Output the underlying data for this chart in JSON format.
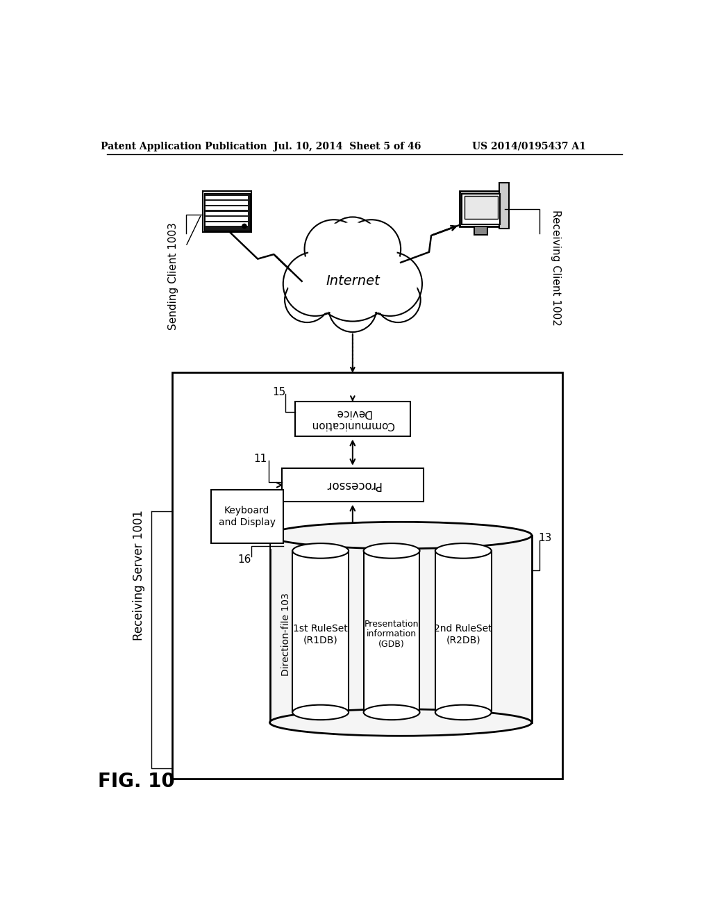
{
  "title_left": "Patent Application Publication",
  "title_mid": "Jul. 10, 2014  Sheet 5 of 46",
  "title_right": "US 2014/0195437 A1",
  "fig_label": "FIG. 10",
  "internet_label": "Internet",
  "sending_client_label": "Sending Client 1003",
  "receiving_client_label": "Receiving Client 1002",
  "receiving_server_label": "Receiving Server 1001",
  "comm_device_label": "Communication\nDevice",
  "comm_device_num": "15",
  "processor_label": "Processor",
  "processor_num": "11",
  "keyboard_label": "Keyboard\nand Display",
  "keyboard_num": "16",
  "direction_file_label": "Direction-file 103",
  "db1_label": "1st RuleSet\n(R1DB)",
  "db2_label": "Presentation\ninformation\n(GDB)",
  "db3_label": "2nd RuleSet\n(R2DB)",
  "db_group_num": "13",
  "bg_color": "#ffffff",
  "box_color": "#000000",
  "text_color": "#000000"
}
